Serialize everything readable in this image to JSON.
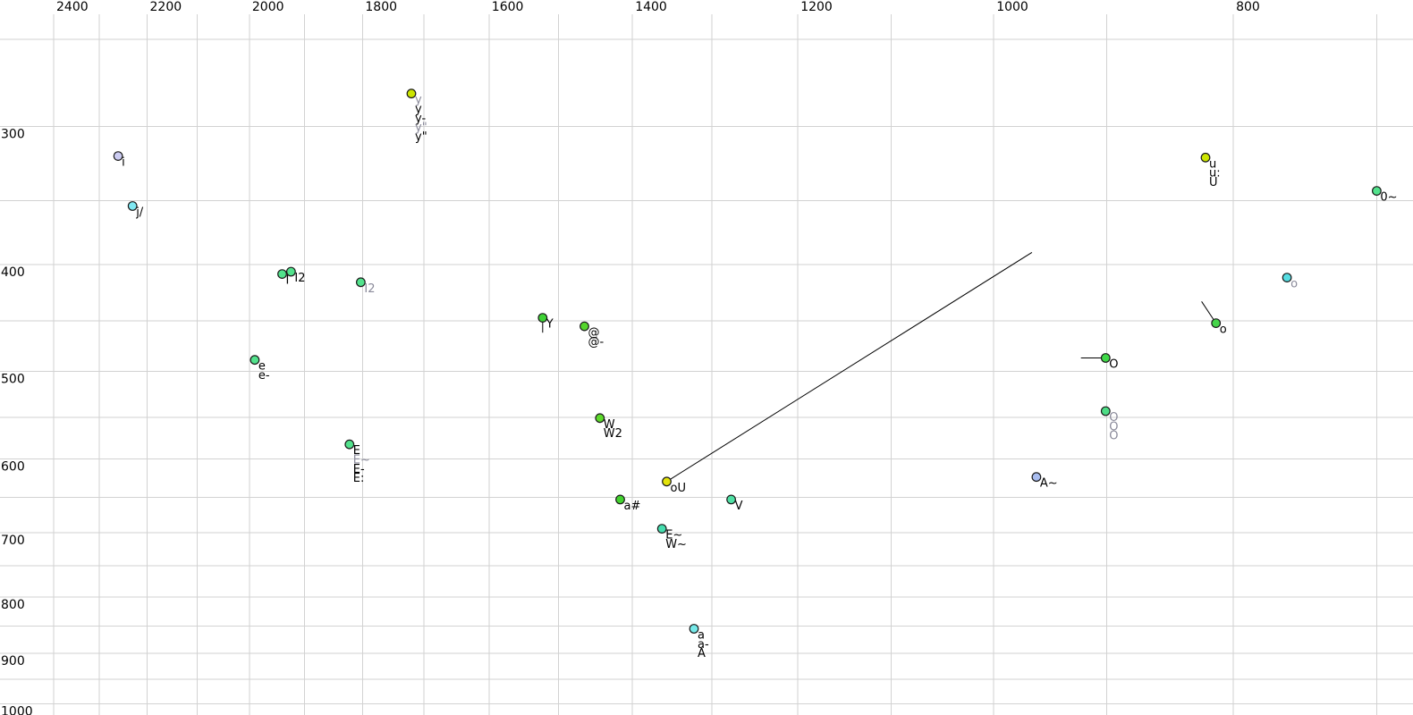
{
  "chart_data": {
    "type": "scatter",
    "title": "",
    "description": "Vowel formant plot: F2 (Hz) on reversed logarithmic top axis, F1 (Hz) on logarithmic left axis",
    "x_axis": {
      "side": "top",
      "direction": "reversed",
      "scale": "log",
      "tick_labels": [
        "2400",
        "2200",
        "2000",
        "1800",
        "1600",
        "1400",
        "1200",
        "1000",
        "800"
      ],
      "tick_values": [
        2400,
        2200,
        2000,
        1800,
        1600,
        1400,
        1200,
        1000,
        800
      ],
      "gridline_values": [
        2400,
        2300,
        2200,
        2100,
        2000,
        1900,
        1800,
        1700,
        1600,
        1500,
        1400,
        1300,
        1200,
        1100,
        1000,
        900,
        800,
        700
      ],
      "range": [
        2523,
        677
      ]
    },
    "y_axis": {
      "side": "left",
      "direction": "down",
      "scale": "log",
      "tick_labels": [
        "300",
        "400",
        "500",
        "600",
        "700",
        "800",
        "900",
        "1000"
      ],
      "tick_values": [
        300,
        400,
        500,
        600,
        700,
        800,
        900,
        1000
      ],
      "gridline_values": [
        250,
        300,
        350,
        400,
        450,
        500,
        550,
        600,
        650,
        700,
        750,
        800,
        850,
        900,
        950,
        1000
      ],
      "range": [
        230,
        1054
      ]
    },
    "grid": true,
    "legend": false,
    "colors": {
      "background": "#ffffff",
      "gridline": "#d2d2d2",
      "vector_line": "#000000",
      "label_black": "#000000",
      "label_gray": "#8a8a9a"
    },
    "scale_calibration": {
      "x_a": 9405.3,
      "x_b": 1200.7,
      "y_a": -2917.8,
      "y_b": 536.4
    },
    "points": [
      {
        "name": "i",
        "f2": 2260,
        "f1": 319,
        "color": "#ccccf2",
        "labels": [
          {
            "text": "i",
            "shade": "black"
          }
        ]
      },
      {
        "name": "j/",
        "f2": 2230,
        "f1": 354,
        "color": "#7fe8f2",
        "labels": [
          {
            "text": "j/",
            "shade": "black"
          }
        ]
      },
      {
        "name": "I",
        "f2": 1940,
        "f1": 408,
        "color": "#52e28c",
        "labels": [
          {
            "text": "I",
            "shade": "black"
          }
        ]
      },
      {
        "name": "I2",
        "f2": 1924,
        "f1": 406,
        "color": "#52e28c",
        "labels": [
          {
            "text": "I2",
            "shade": "black"
          }
        ]
      },
      {
        "name": "I2-alt",
        "f2": 1803,
        "f1": 415,
        "color": "#52e28c",
        "labels": [
          {
            "text": "I2",
            "shade": "gray"
          }
        ]
      },
      {
        "name": "y",
        "f2": 1720,
        "f1": 280,
        "color": "#cce500",
        "labels": [
          {
            "text": "y",
            "shade": "gray"
          },
          {
            "text": "y",
            "shade": "black"
          },
          {
            "text": "y-",
            "shade": "black"
          },
          {
            "text": "y\"",
            "shade": "gray"
          },
          {
            "text": "y\"",
            "shade": "black"
          }
        ]
      },
      {
        "name": "e",
        "f2": 1990,
        "f1": 488,
        "color": "#52e28c",
        "labels": [
          {
            "text": "e",
            "shade": "black"
          },
          {
            "text": "e-",
            "shade": "black"
          }
        ]
      },
      {
        "name": "Y",
        "f2": 1522,
        "f1": 447,
        "color": "#3ed235",
        "labels": [
          {
            "text": "Y",
            "shade": "black"
          }
        ],
        "line_to": {
          "f2": 1522,
          "f1": 461
        }
      },
      {
        "name": "@",
        "f2": 1464,
        "f1": 455,
        "color": "#54d52b",
        "labels": [
          {
            "text": "@",
            "shade": "black"
          },
          {
            "text": "@-",
            "shade": "black"
          }
        ]
      },
      {
        "name": "W",
        "f2": 1443,
        "f1": 551,
        "color": "#5cd92a",
        "labels": [
          {
            "text": "W",
            "shade": "black"
          },
          {
            "text": "W2",
            "shade": "black"
          }
        ]
      },
      {
        "name": "E",
        "f2": 1822,
        "f1": 582,
        "color": "#52e28c",
        "labels": [
          {
            "text": "E",
            "shade": "black"
          },
          {
            "text": "E~",
            "shade": "gray"
          },
          {
            "text": "E-",
            "shade": "black"
          },
          {
            "text": "E:",
            "shade": "black"
          }
        ]
      },
      {
        "name": "oU",
        "f2": 1356,
        "f1": 629,
        "color": "#e3e30b",
        "labels": [
          {
            "text": "oU",
            "shade": "black"
          }
        ],
        "line_to": {
          "f2": 965,
          "f1": 390
        }
      },
      {
        "name": "a#",
        "f2": 1416,
        "f1": 653,
        "color": "#43d32f",
        "labels": [
          {
            "text": "a#",
            "shade": "black"
          }
        ]
      },
      {
        "name": "V",
        "f2": 1277,
        "f1": 653,
        "color": "#4fe0a4",
        "labels": [
          {
            "text": "V",
            "shade": "black"
          }
        ]
      },
      {
        "name": "E~",
        "f2": 1362,
        "f1": 694,
        "color": "#45ddae",
        "labels": [
          {
            "text": "E~",
            "shade": "black"
          },
          {
            "text": "W~",
            "shade": "black"
          }
        ]
      },
      {
        "name": "a",
        "f2": 1322,
        "f1": 855,
        "color": "#76e9e9",
        "labels": [
          {
            "text": "a",
            "shade": "black"
          },
          {
            "text": "a-",
            "shade": "black"
          },
          {
            "text": "A",
            "shade": "black"
          }
        ]
      },
      {
        "name": "A~",
        "f2": 961,
        "f1": 623,
        "color": "#a9bdf0",
        "labels": [
          {
            "text": "A~",
            "shade": "black"
          }
        ]
      },
      {
        "name": "u",
        "f2": 821,
        "f1": 320,
        "color": "#cce500",
        "labels": [
          {
            "text": "u",
            "shade": "black"
          },
          {
            "text": "u:",
            "shade": "black"
          },
          {
            "text": "U",
            "shade": "black"
          }
        ]
      },
      {
        "name": "0~",
        "f2": 700,
        "f1": 343,
        "color": "#52e28c",
        "labels": [
          {
            "text": "0~",
            "shade": "black"
          }
        ]
      },
      {
        "name": "o-alt",
        "f2": 761,
        "f1": 411,
        "color": "#55dde2",
        "labels": [
          {
            "text": "o",
            "shade": "gray"
          }
        ]
      },
      {
        "name": "o",
        "f2": 813,
        "f1": 452,
        "color": "#46d54a",
        "labels": [
          {
            "text": "o",
            "shade": "black"
          }
        ],
        "line_to": {
          "f2": 824,
          "f1": 432
        }
      },
      {
        "name": "O",
        "f2": 901,
        "f1": 486,
        "color": "#3fd848",
        "labels": [
          {
            "text": "O",
            "shade": "black"
          }
        ],
        "line_to": {
          "f2": 922,
          "f1": 486
        }
      },
      {
        "name": "O-alt",
        "f2": 901,
        "f1": 543,
        "color": "#4ddc85",
        "labels": [
          {
            "text": "O",
            "shade": "gray"
          },
          {
            "text": "O",
            "shade": "gray"
          },
          {
            "text": "O",
            "shade": "gray"
          }
        ]
      }
    ]
  }
}
